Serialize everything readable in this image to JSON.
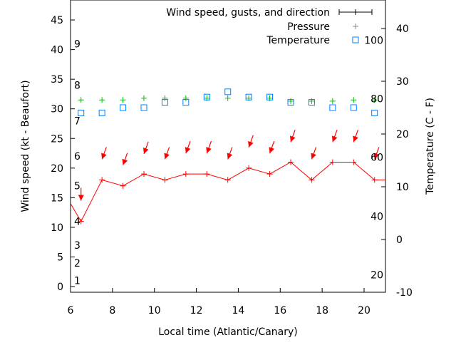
{
  "chart_data": {
    "type": "line",
    "xlabel": "Local time (Atlantic/Canary)",
    "ylabel": "Wind speed (kt - Beaufort)",
    "y2label": "Temperature (C - F)",
    "xlim": [
      6,
      21
    ],
    "ylim": [
      0,
      48
    ],
    "y2lim": [
      -10,
      45
    ],
    "x_ticks": [
      6,
      8,
      10,
      12,
      14,
      16,
      18,
      20
    ],
    "y_ticks": [
      0,
      5,
      10,
      15,
      20,
      25,
      30,
      35,
      40,
      45
    ],
    "y2_ticks": [
      -10,
      0,
      10,
      20,
      30,
      40
    ],
    "fahrenheit_labels": [
      {
        "label": "20",
        "celsius": -6.7
      },
      {
        "label": "40",
        "celsius": 4.4
      },
      {
        "label": "60",
        "celsius": 15.6
      },
      {
        "label": "80",
        "celsius": 26.7
      },
      {
        "label": "100",
        "celsius": 37.8
      }
    ],
    "beaufort_labels": [
      {
        "label": "1",
        "kt": 1
      },
      {
        "label": "2",
        "kt": 4
      },
      {
        "label": "3",
        "kt": 7
      },
      {
        "label": "4",
        "kt": 11
      },
      {
        "label": "5",
        "kt": 17
      },
      {
        "label": "6",
        "kt": 22
      },
      {
        "label": "7",
        "kt": 28
      },
      {
        "label": "8",
        "kt": 34
      },
      {
        "label": "9",
        "kt": 41
      }
    ],
    "legend": {
      "position": "top-right",
      "entries": [
        "Wind speed, gusts, and direction",
        "Pressure",
        "Temperature"
      ]
    },
    "x": [
      6.5,
      7.5,
      8.5,
      9.5,
      10.5,
      11.5,
      12.5,
      13.5,
      14.5,
      15.5,
      16.5,
      17.5,
      18.5,
      19.5,
      20.5
    ],
    "series": [
      {
        "name": "Wind speed",
        "axis": "y",
        "color": "#ff0000",
        "values": [
          11,
          18,
          17,
          19,
          18,
          19,
          19,
          18,
          20,
          19,
          21,
          18,
          21,
          21,
          18
        ],
        "lead_in": {
          "x": 5.5,
          "value": 17
        },
        "lead_out": {
          "x": 21.5,
          "value": 18
        }
      },
      {
        "name": "Gusts",
        "axis": "y",
        "color": "#ff0000",
        "values": [
          14.5,
          21.5,
          20.5,
          22.4,
          21.5,
          22.5,
          22.5,
          21.5,
          23.5,
          22.5,
          24.4,
          21.5,
          24.4,
          24.4,
          21.5
        ],
        "direction_deg": [
          0,
          20,
          20,
          20,
          20,
          20,
          20,
          20,
          20,
          20,
          20,
          20,
          20,
          20,
          20
        ]
      },
      {
        "name": "Pressure",
        "axis": "y",
        "color": "#00c000",
        "values": [
          31.5,
          31.5,
          31.5,
          31.8,
          31.8,
          31.8,
          31.8,
          31.8,
          31.8,
          31.8,
          31.3,
          31.3,
          31.3,
          31.5,
          31.5
        ]
      },
      {
        "name": "Temperature",
        "axis": "y2",
        "color": "#0080ff",
        "values": [
          24,
          24,
          25,
          25,
          26,
          26,
          27,
          28,
          27,
          27,
          26,
          26,
          25,
          25,
          24
        ]
      }
    ]
  }
}
